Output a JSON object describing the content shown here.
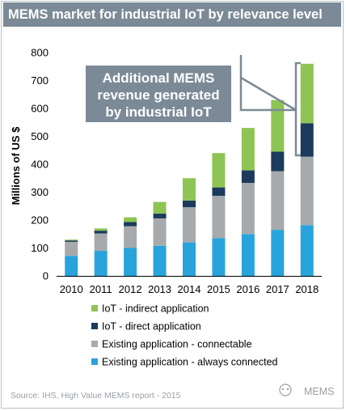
{
  "chart_data": {
    "type": "bar",
    "stacked": true,
    "title": "MEMS market for industrial IoT by relevance level",
    "ylabel": "Millions of US $",
    "xlabel": "",
    "ylim": [
      0,
      800
    ],
    "yticks": [
      0,
      100,
      200,
      300,
      400,
      500,
      600,
      700,
      800
    ],
    "grid": false,
    "legend_position": "bottom",
    "categories": [
      "2010",
      "2011",
      "2012",
      "2013",
      "2014",
      "2015",
      "2016",
      "2017",
      "2018"
    ],
    "series": [
      {
        "name": "Existing application - always connected",
        "color": "#29a3dc",
        "values": [
          72,
          90,
          100,
          108,
          120,
          135,
          150,
          165,
          182
        ]
      },
      {
        "name": "Existing application - connectable",
        "color": "#a6aaad",
        "values": [
          50,
          62,
          78,
          98,
          126,
          152,
          183,
          210,
          245
        ]
      },
      {
        "name": "IoT - direct application",
        "color": "#1b3a5c",
        "values": [
          5,
          10,
          15,
          17,
          24,
          30,
          45,
          70,
          120
        ]
      },
      {
        "name": "IoT - indirect application",
        "color": "#8dc453",
        "values": [
          3,
          8,
          17,
          42,
          80,
          123,
          152,
          185,
          213
        ]
      }
    ],
    "legend_order": [
      "IoT - indirect application",
      "IoT - direct application",
      "Existing application - connectable",
      "Existing application - always connected"
    ],
    "annotation": {
      "lines": [
        "Additional MEMS",
        "revenue generated",
        "by industrial IoT"
      ],
      "box_color": "#7b8a96"
    }
  },
  "footer": {
    "source": "Source: IHS, High Value MEMS report - 2015",
    "watermark": "MEMS"
  }
}
